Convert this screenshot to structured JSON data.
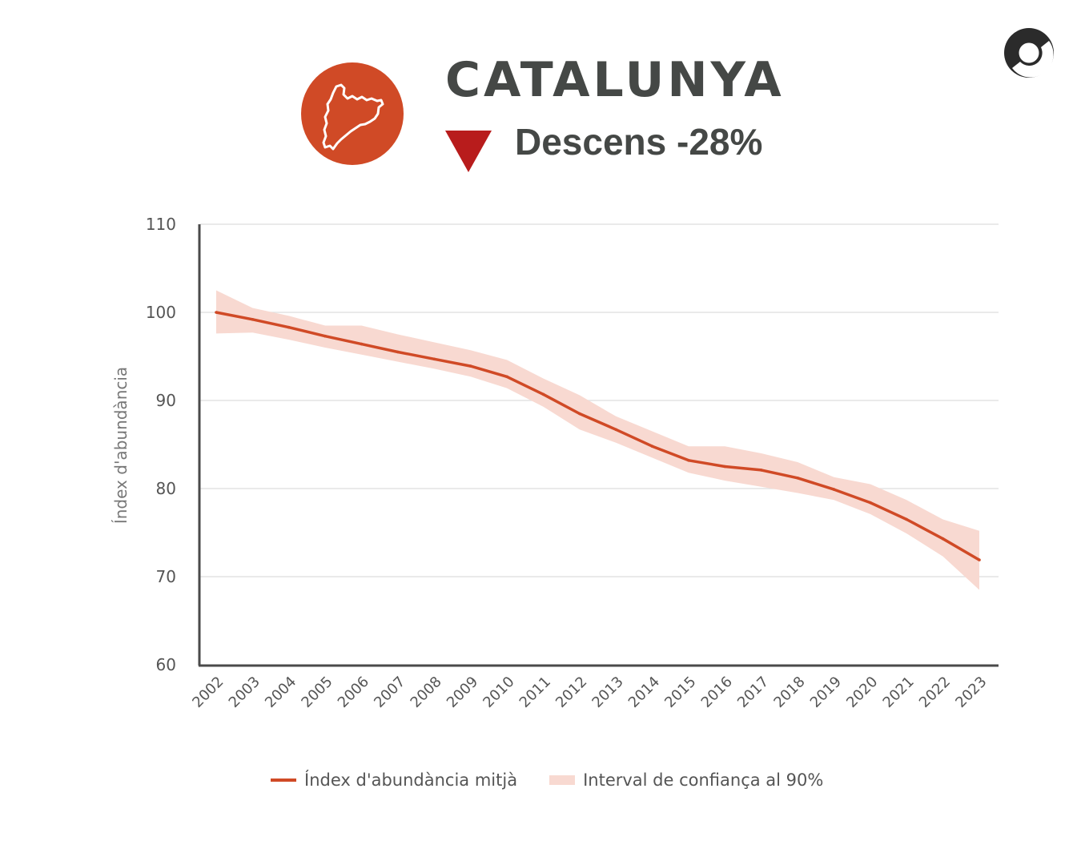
{
  "header": {
    "title": "CATALUNYA",
    "trend_text": "Descens -28%",
    "trend_icon": "down-triangle-icon",
    "region_icon": "catalonia-map-icon",
    "logo_icon": "circle-logo-icon"
  },
  "colors": {
    "accent": "#d04a26",
    "band": "#f8d9d1",
    "trend": "#b81c1c",
    "text": "#454846",
    "axis": "#4a4a4a",
    "grid": "#e3e3e3"
  },
  "chart_data": {
    "type": "line",
    "title": "CATALUNYA",
    "xlabel": "",
    "ylabel": "Índex d'abundància",
    "ylim": [
      60,
      110
    ],
    "yticks": [
      "60",
      "70",
      "80",
      "90",
      "100",
      "110"
    ],
    "grid": true,
    "legend_position": "bottom",
    "x": [
      "2002",
      "2003",
      "2004",
      "2005",
      "2006",
      "2007",
      "2008",
      "2009",
      "2010",
      "2011",
      "2012",
      "2013",
      "2014",
      "2015",
      "2016",
      "2017",
      "2018",
      "2019",
      "2020",
      "2021",
      "2022",
      "2023"
    ],
    "series": [
      {
        "name": "Índex d'abundància mitjà",
        "values": [
          100,
          99.2,
          98.3,
          97.3,
          96.4,
          95.5,
          94.7,
          93.9,
          92.7,
          90.7,
          88.5,
          86.7,
          84.8,
          83.2,
          82.5,
          82.1,
          81.2,
          79.9,
          78.4,
          76.5,
          74.3,
          71.9
        ]
      },
      {
        "name": "Interval de confiança al 90%",
        "upper": [
          102.5,
          100.5,
          99.6,
          98.5,
          98.5,
          97.5,
          96.6,
          95.7,
          94.6,
          92.5,
          90.6,
          88.2,
          86.5,
          84.8,
          84.8,
          84.0,
          83.0,
          81.3,
          80.5,
          78.7,
          76.5,
          75.2
        ],
        "lower": [
          97.6,
          97.7,
          96.9,
          96.0,
          95.2,
          94.4,
          93.6,
          92.7,
          91.4,
          89.3,
          86.7,
          85.2,
          83.5,
          81.8,
          80.9,
          80.2,
          79.5,
          78.7,
          77.1,
          74.9,
          72.3,
          68.5
        ]
      }
    ]
  }
}
